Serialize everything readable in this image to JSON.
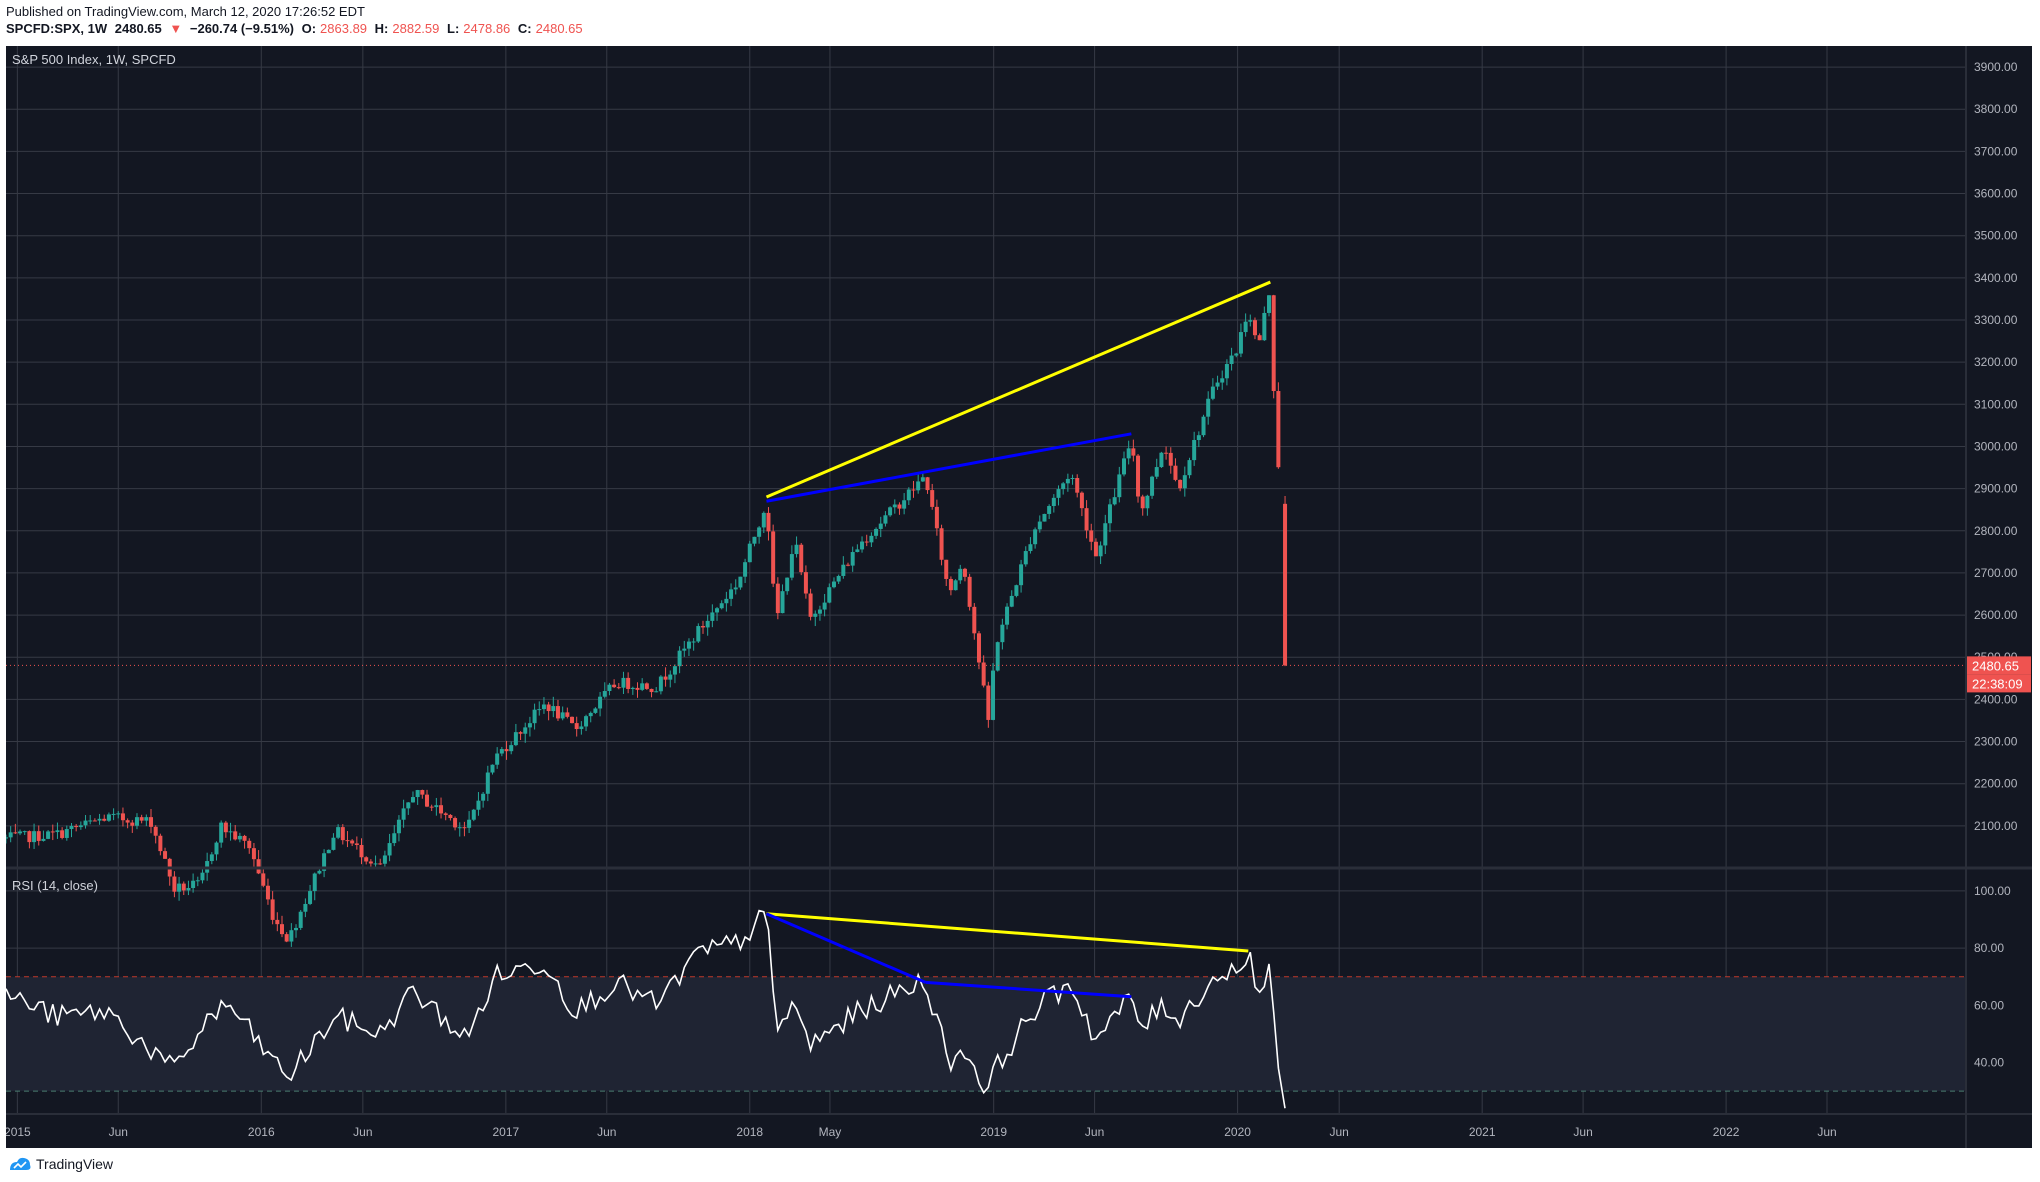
{
  "header": {
    "published": "Published on TradingView.com, March 12, 2020 17:26:52 EDT",
    "symbol": "SPCFD:SPX, 1W",
    "last": "2480.65",
    "change": "−260.74 (−9.51%)",
    "o_label": "O:",
    "o_value": "2863.89",
    "h_label": "H:",
    "h_value": "2882.59",
    "l_label": "L:",
    "l_value": "2478.86",
    "c_label": "C:",
    "c_value": "2480.65"
  },
  "price_pane": {
    "title": "S&P 500 Index, 1W, SPCFD",
    "last_price_label": "2480.65",
    "countdown_label": "22:38:09"
  },
  "rsi_pane": {
    "title": "RSI (14, close)"
  },
  "footer": {
    "brand": "TradingView"
  },
  "colors": {
    "background": "#131722",
    "grid": "#363a45",
    "up": "#26a69a",
    "down": "#ef5350",
    "trend_yellow": "#ffff00",
    "trend_blue": "#0000ff",
    "rsi_line": "#ffffff",
    "axis_text": "#b2b5be"
  },
  "chart_data": [
    {
      "type": "candlestick",
      "title": "S&P 500 Index, 1W, SPCFD",
      "interval": "1W",
      "x_range": [
        "2014-12-15",
        "2022-12-26"
      ],
      "ylim": [
        2000,
        3950
      ],
      "y_ticks": [
        2100,
        2200,
        2300,
        2400,
        2500,
        2600,
        2700,
        2800,
        2900,
        3000,
        3100,
        3200,
        3300,
        3400,
        3500,
        3600,
        3700,
        3800,
        3900
      ],
      "y_tick_labels": [
        "2100.00",
        "2200.00",
        "2300.00",
        "2400.00",
        "2500.00",
        "2600.00",
        "2700.00",
        "2800.00",
        "2900.00",
        "3000.00",
        "3100.00",
        "3200.00",
        "3300.00",
        "3400.00",
        "3500.00",
        "3600.00",
        "3700.00",
        "3800.00",
        "3900.00"
      ],
      "x_ticks": [
        {
          "date": "2015-01-01",
          "label": "2015"
        },
        {
          "date": "2015-06-01",
          "label": "Jun"
        },
        {
          "date": "2016-01-01",
          "label": "2016"
        },
        {
          "date": "2016-06-01",
          "label": "Jun"
        },
        {
          "date": "2017-01-01",
          "label": "2017"
        },
        {
          "date": "2017-06-01",
          "label": "Jun"
        },
        {
          "date": "2018-01-01",
          "label": "2018"
        },
        {
          "date": "2018-05-01",
          "label": "May"
        },
        {
          "date": "2019-01-01",
          "label": "2019"
        },
        {
          "date": "2019-06-01",
          "label": "Jun"
        },
        {
          "date": "2020-01-01",
          "label": "2020"
        },
        {
          "date": "2020-06-01",
          "label": "Jun"
        },
        {
          "date": "2021-01-01",
          "label": "2021"
        },
        {
          "date": "2021-06-01",
          "label": "Jun"
        },
        {
          "date": "2022-01-01",
          "label": "2022"
        },
        {
          "date": "2022-06-01",
          "label": "Jun"
        }
      ],
      "key_closes": [
        [
          "2014-12-15",
          2070
        ],
        [
          "2015-03-01",
          2080
        ],
        [
          "2015-05-15",
          2120
        ],
        [
          "2015-07-20",
          2110
        ],
        [
          "2015-08-24",
          1950
        ],
        [
          "2015-10-01",
          1960
        ],
        [
          "2015-11-01",
          2100
        ],
        [
          "2015-12-15",
          2050
        ],
        [
          "2016-01-20",
          1880
        ],
        [
          "2016-02-11",
          1830
        ],
        [
          "2016-04-20",
          2090
        ],
        [
          "2016-06-27",
          2000
        ],
        [
          "2016-08-15",
          2180
        ],
        [
          "2016-11-04",
          2090
        ],
        [
          "2016-12-15",
          2260
        ],
        [
          "2017-03-01",
          2390
        ],
        [
          "2017-04-15",
          2330
        ],
        [
          "2017-06-15",
          2440
        ],
        [
          "2017-08-15",
          2430
        ],
        [
          "2017-10-15",
          2560
        ],
        [
          "2017-12-15",
          2680
        ],
        [
          "2018-01-26",
          2870
        ],
        [
          "2018-02-09",
          2580
        ],
        [
          "2018-03-09",
          2780
        ],
        [
          "2018-04-01",
          2590
        ],
        [
          "2018-06-15",
          2770
        ],
        [
          "2018-09-21",
          2930
        ],
        [
          "2018-10-26",
          2650
        ],
        [
          "2018-11-16",
          2730
        ],
        [
          "2018-12-24",
          2350
        ],
        [
          "2019-01-04",
          2530
        ],
        [
          "2019-03-01",
          2800
        ],
        [
          "2019-04-26",
          2940
        ],
        [
          "2019-06-03",
          2740
        ],
        [
          "2019-07-26",
          3020
        ],
        [
          "2019-08-09",
          2840
        ],
        [
          "2019-09-13",
          3010
        ],
        [
          "2019-10-04",
          2900
        ],
        [
          "2019-11-29",
          3150
        ],
        [
          "2019-12-31",
          3230
        ],
        [
          "2020-01-17",
          3330
        ],
        [
          "2020-01-31",
          3230
        ],
        [
          "2020-02-19",
          3380
        ],
        [
          "2020-02-28",
          2950
        ],
        [
          "2020-03-06",
          2970
        ],
        [
          "2020-03-12",
          2480.65
        ]
      ],
      "last_candle": {
        "date": "2020-03-12",
        "open": 2863.89,
        "high": 2882.59,
        "low": 2478.86,
        "close": 2480.65
      },
      "annotations": [
        {
          "type": "trendline",
          "color": "yellow",
          "from": [
            "2018-01-26",
            2880
          ],
          "to": [
            "2020-02-19",
            3390
          ]
        },
        {
          "type": "trendline",
          "color": "blue",
          "from": [
            "2018-01-26",
            2870
          ],
          "to": [
            "2019-07-26",
            3030
          ]
        },
        {
          "type": "horizontal_line",
          "style": "dotted",
          "color": "red",
          "value": 2480.65
        }
      ]
    },
    {
      "type": "line",
      "title": "RSI (14, close)",
      "ylim": [
        22,
        108
      ],
      "y_ticks": [
        40,
        60,
        80,
        100
      ],
      "y_tick_labels": [
        "40.00",
        "60.00",
        "80.00",
        "100.00"
      ],
      "bands": {
        "upper": 70,
        "lower": 30
      },
      "key_values": [
        [
          "2014-12-15",
          64
        ],
        [
          "2015-03-01",
          56
        ],
        [
          "2015-05-15",
          58
        ],
        [
          "2015-08-24",
          37
        ],
        [
          "2015-10-15",
          56
        ],
        [
          "2015-11-15",
          60
        ],
        [
          "2016-01-20",
          40
        ],
        [
          "2016-02-11",
          35
        ],
        [
          "2016-04-20",
          56
        ],
        [
          "2016-06-27",
          50
        ],
        [
          "2016-08-15",
          65
        ],
        [
          "2016-11-04",
          48
        ],
        [
          "2016-12-15",
          70
        ],
        [
          "2017-03-01",
          75
        ],
        [
          "2017-04-15",
          58
        ],
        [
          "2017-06-15",
          68
        ],
        [
          "2017-08-15",
          60
        ],
        [
          "2017-10-15",
          78
        ],
        [
          "2017-12-15",
          82
        ],
        [
          "2018-01-26",
          92
        ],
        [
          "2018-02-09",
          52
        ],
        [
          "2018-03-09",
          60
        ],
        [
          "2018-04-01",
          46
        ],
        [
          "2018-06-15",
          58
        ],
        [
          "2018-09-21",
          69
        ],
        [
          "2018-10-26",
          40
        ],
        [
          "2018-11-16",
          45
        ],
        [
          "2018-12-24",
          30
        ],
        [
          "2019-01-04",
          38
        ],
        [
          "2019-03-01",
          58
        ],
        [
          "2019-04-26",
          68
        ],
        [
          "2019-06-03",
          48
        ],
        [
          "2019-07-26",
          63
        ],
        [
          "2019-08-09",
          52
        ],
        [
          "2019-09-13",
          60
        ],
        [
          "2019-10-04",
          55
        ],
        [
          "2019-11-29",
          70
        ],
        [
          "2019-12-31",
          72
        ],
        [
          "2020-01-17",
          80
        ],
        [
          "2020-01-31",
          63
        ],
        [
          "2020-02-19",
          73
        ],
        [
          "2020-02-28",
          38
        ],
        [
          "2020-03-06",
          40
        ],
        [
          "2020-03-12",
          24
        ]
      ],
      "annotations": [
        {
          "type": "trendline",
          "color": "yellow",
          "from": [
            "2018-01-26",
            92
          ],
          "to": [
            "2020-01-17",
            79
          ]
        },
        {
          "type": "trendline",
          "color": "blue",
          "from": [
            "2018-01-26",
            92
          ],
          "to": [
            "2018-09-21",
            68
          ]
        },
        {
          "type": "trendline",
          "color": "blue",
          "from": [
            "2018-09-21",
            68
          ],
          "to": [
            "2019-07-26",
            63
          ]
        }
      ]
    }
  ]
}
